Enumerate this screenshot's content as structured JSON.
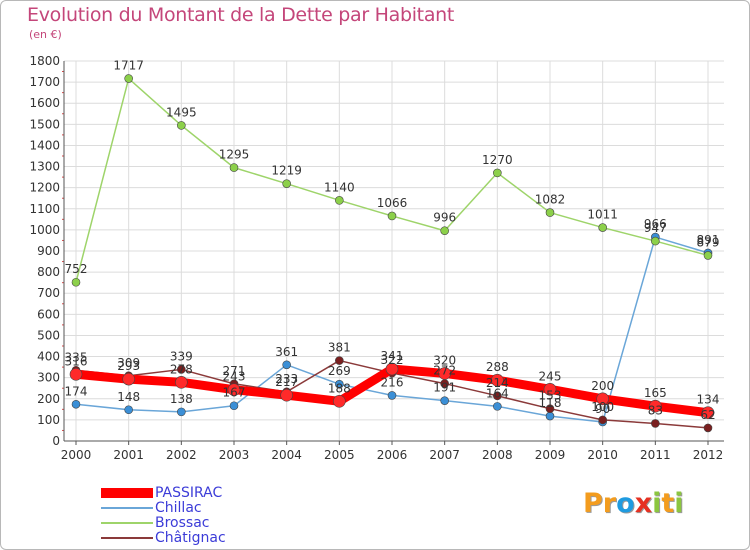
{
  "title": "Evolution du Montant de la Dette par Habitant",
  "unit_label": "(en €)",
  "logo": {
    "text": "ProXiti",
    "letters": [
      "P",
      "r",
      "o",
      "x",
      "i",
      "t",
      "i"
    ],
    "colors": [
      "#f39c1e",
      "#f39c1e",
      "#1f9be0",
      "#e63122",
      "#8cc63f",
      "#f39c1e",
      "#8cc63f"
    ]
  },
  "chart_data": {
    "type": "line",
    "categories": [
      "2000",
      "2001",
      "2002",
      "2003",
      "2004",
      "2005",
      "2006",
      "2007",
      "2008",
      "2009",
      "2010",
      "2011",
      "2012"
    ],
    "y_ticks": [
      "0",
      "100",
      "200",
      "300",
      "400",
      "500",
      "600",
      "700",
      "800",
      "900",
      "1000",
      "1100",
      "1200",
      "1300",
      "1400",
      "1500",
      "1600",
      "1700",
      "1800"
    ],
    "ylim": [
      0,
      1800
    ],
    "grid": true,
    "legend_position": "bottom-left",
    "series": [
      {
        "name": "PASSIRAC",
        "color": "#ff0000",
        "marker": "#ff2a2a",
        "values": [
          316,
          293,
          278,
          243,
          217,
          188,
          341,
          320,
          288,
          245,
          200,
          165,
          134
        ],
        "labels": [
          "316",
          "293",
          "278",
          "243",
          "217",
          "188",
          "341",
          "320",
          "288",
          "245",
          "200",
          "165",
          "134"
        ]
      },
      {
        "name": "Chillac",
        "color": "#6aa6d8",
        "marker": "#3b8fd6",
        "values": [
          174,
          148,
          138,
          167,
          361,
          269,
          216,
          191,
          164,
          118,
          90,
          966,
          891
        ],
        "labels": [
          "174",
          "148",
          "138",
          "167",
          "361",
          "269",
          "216",
          "191",
          "164",
          "118",
          "90",
          "966",
          "891"
        ]
      },
      {
        "name": "Brossac",
        "color": "#9ed46a",
        "marker": "#8cd04a",
        "values": [
          752,
          1717,
          1495,
          1295,
          1219,
          1140,
          1066,
          996,
          1270,
          1082,
          1011,
          947,
          879
        ],
        "labels": [
          "752",
          "1717",
          "1495",
          "1295",
          "1219",
          "1140",
          "1066",
          "996",
          "1270",
          "1082",
          "1011",
          "947",
          "879"
        ]
      },
      {
        "name": "Châtignac",
        "color": "#8b3a3a",
        "marker": "#7a1f1f",
        "values": [
          335,
          309,
          339,
          271,
          233,
          381,
          322,
          272,
          214,
          153,
          100,
          83,
          62
        ],
        "labels": [
          "335",
          "309",
          "339",
          "271",
          "233",
          "381",
          "322",
          "272",
          "214",
          "153",
          "100",
          "83",
          "62"
        ]
      }
    ]
  }
}
